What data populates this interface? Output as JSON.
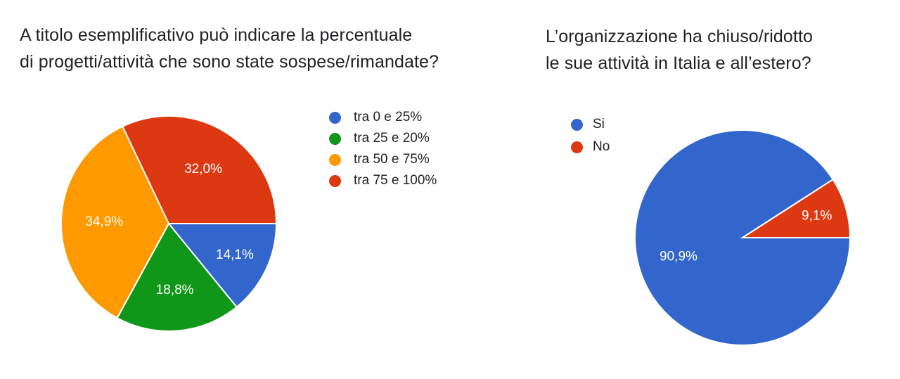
{
  "chart_data": [
    {
      "type": "pie",
      "title_lines": [
        "A titolo esemplificativo può indicare la percentuale",
        "di progetti/attività che sono state sospese/rimandate?"
      ],
      "legend_position": "right",
      "slices": [
        {
          "label": "tra 0 e 25%",
          "value": 14.1,
          "value_label": "14,1%",
          "color": "#3366cc"
        },
        {
          "label": "tra 25 e 20%",
          "value": 18.8,
          "value_label": "18,8%",
          "color": "#109618"
        },
        {
          "label": "tra 50 e 75%",
          "value": 34.9,
          "value_label": "34,9%",
          "color": "#ff9900"
        },
        {
          "label": "tra 75 e 100%",
          "value": 32.0,
          "value_label": "32,0%",
          "color": "#dc3912"
        }
      ]
    },
    {
      "type": "pie",
      "title_lines": [
        "L’organizzazione ha chiuso/ridotto",
        "le sue attività in Italia e all’estero?"
      ],
      "legend_position": "top-left",
      "slices": [
        {
          "label": "Si",
          "value": 90.9,
          "value_label": "90,9%",
          "color": "#3366cc"
        },
        {
          "label": "No",
          "value": 9.1,
          "value_label": "9,1%",
          "color": "#dc3912"
        }
      ]
    }
  ]
}
